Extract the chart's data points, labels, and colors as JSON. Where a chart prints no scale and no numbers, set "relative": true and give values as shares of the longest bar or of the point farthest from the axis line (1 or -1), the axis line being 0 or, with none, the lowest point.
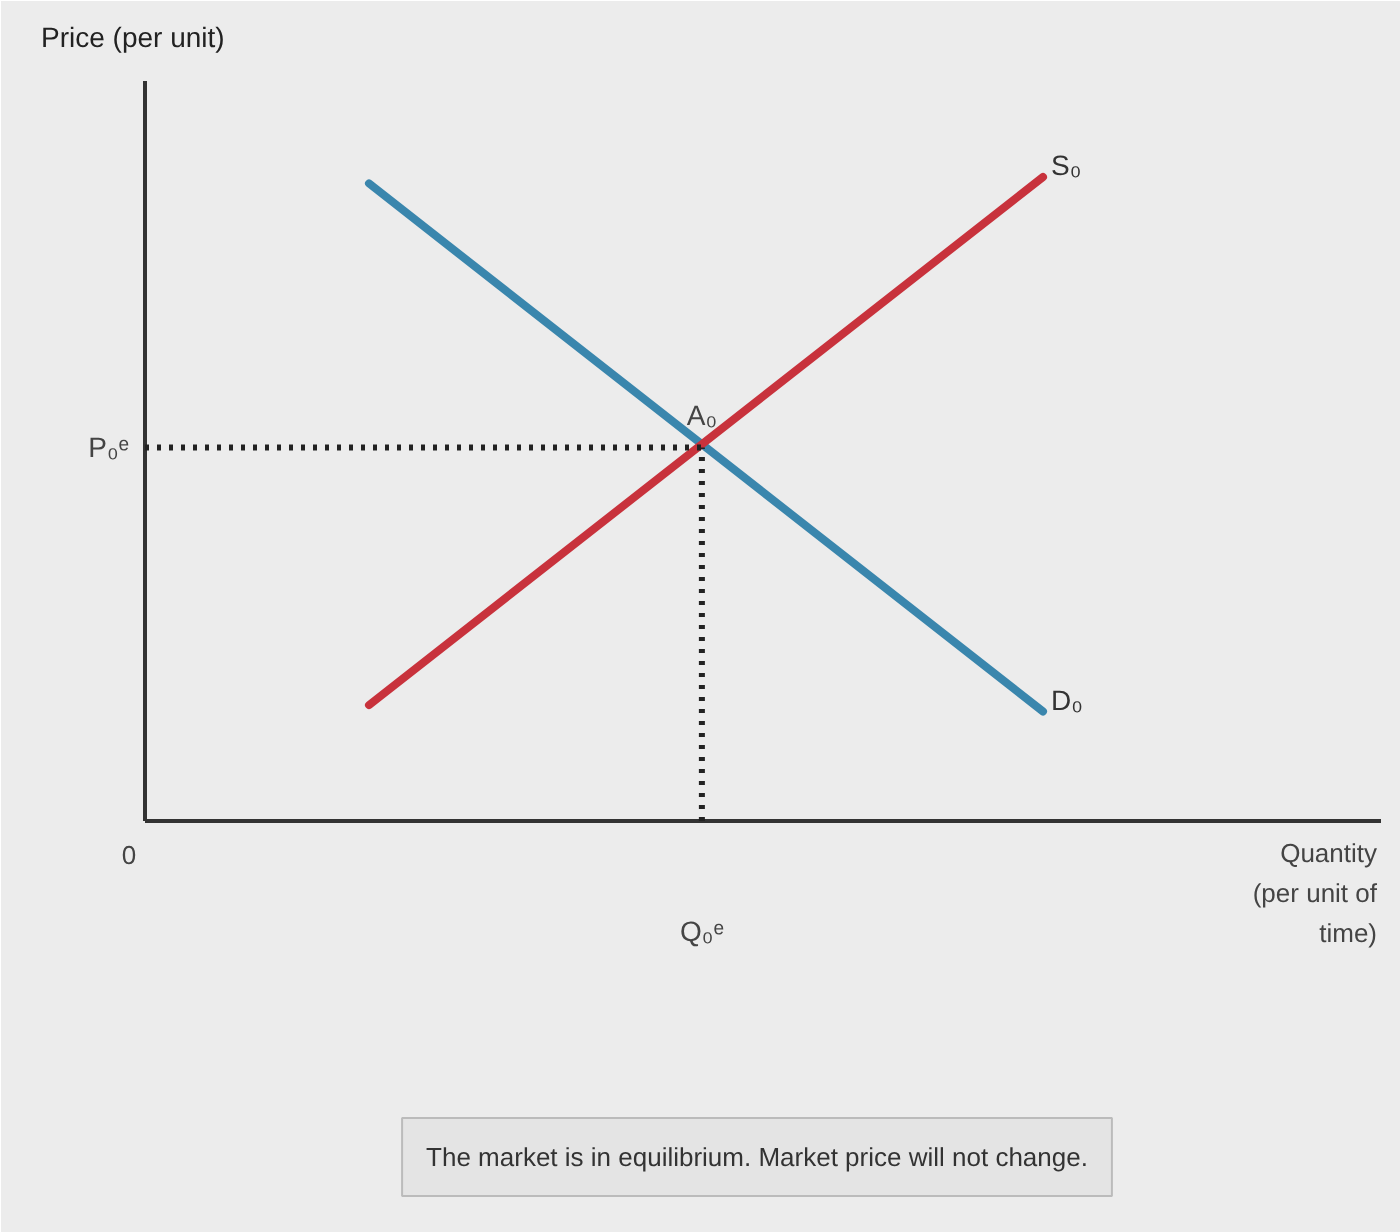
{
  "chart_data": {
    "type": "line",
    "relative": true,
    "ylabel": "Price (per unit)",
    "xlabel": "Quantity (per unit of time)",
    "categories": [
      null,
      null
    ],
    "series": [
      {
        "name": "D₀",
        "color": "#3a86ad",
        "values": [
          0.99,
          0.17
        ]
      },
      {
        "name": "S₀",
        "color": "#c8323c",
        "values": [
          0.18,
          1.0
        ]
      }
    ],
    "ref_lines": [
      {
        "axis": "y",
        "value": 0.58,
        "label": "P₀ᵉ",
        "line_style": "dotted",
        "color": "#222222"
      },
      {
        "axis": "x",
        "label": "Q₀ᵉ",
        "line_style": "dotted",
        "color": "#222222"
      }
    ],
    "annotations": [
      {
        "text": "A₀",
        "y": 0.58
      },
      "0",
      "The market is in equilibrium. Market price will not change."
    ]
  }
}
